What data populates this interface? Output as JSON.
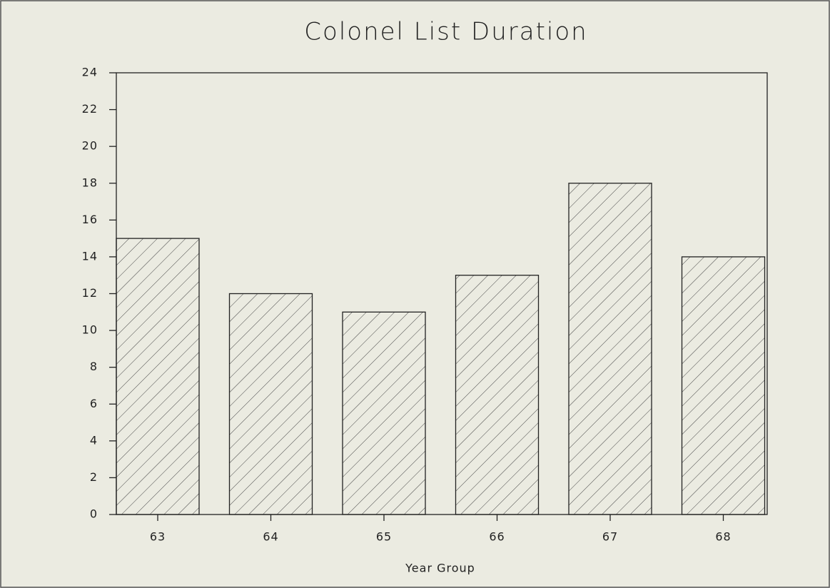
{
  "chart_data": {
    "type": "bar",
    "title": "Colonel List Duration",
    "x_label": "Year Group",
    "categories": [
      "63",
      "64",
      "65",
      "66",
      "67",
      "68"
    ],
    "values": [
      15,
      12,
      11,
      13,
      18,
      14
    ],
    "color": "#222222",
    "hatch": true,
    "ylim": [
      0,
      24
    ],
    "yticks": [
      0,
      2,
      4,
      6,
      8,
      10,
      12,
      14,
      16,
      18,
      20,
      22,
      24
    ],
    "grid": false
  }
}
